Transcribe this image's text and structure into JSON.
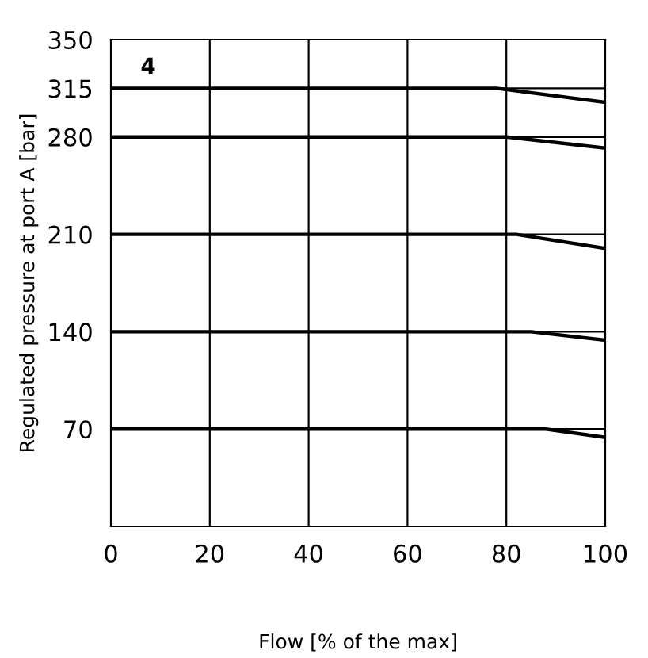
{
  "chart_data": {
    "type": "line",
    "xlabel": "Flow [% of the max]",
    "ylabel": "Regulated pressure at port A [bar]",
    "annotations": [
      "4"
    ],
    "series": [
      {
        "color": "#000000",
        "x": [
          0,
          78,
          100
        ],
        "values": [
          315,
          315,
          305
        ]
      },
      {
        "color": "#000000",
        "x": [
          0,
          80,
          100
        ],
        "values": [
          280,
          280,
          272
        ]
      },
      {
        "color": "#000000",
        "x": [
          0,
          82,
          100
        ],
        "values": [
          210,
          210,
          200
        ]
      },
      {
        "color": "#000000",
        "x": [
          0,
          85,
          100
        ],
        "values": [
          140,
          140,
          134
        ]
      },
      {
        "color": "#000000",
        "x": [
          0,
          88,
          100
        ],
        "values": [
          70,
          70,
          64
        ]
      }
    ],
    "xlim": [
      0,
      100
    ],
    "ylim": [
      0,
      350
    ],
    "xticks": [
      0,
      20,
      40,
      60,
      80,
      100
    ],
    "yticks": [
      70,
      140,
      210,
      280,
      315,
      350
    ],
    "grid": true,
    "marker": "none",
    "line_style": "solid"
  }
}
